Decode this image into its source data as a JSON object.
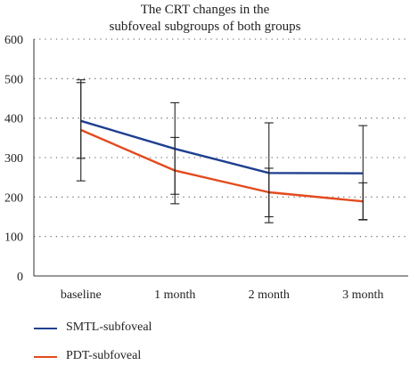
{
  "chart_data": {
    "type": "line",
    "title_lines": [
      "The CRT changes in the",
      "subfoveal subgroups of both groups"
    ],
    "xlabel": "",
    "ylabel": "",
    "categories": [
      "baseline",
      "1 month",
      "2 month",
      "3 month"
    ],
    "ylim": [
      0,
      600
    ],
    "yticks": [
      0,
      100,
      200,
      300,
      400,
      500,
      600
    ],
    "grid": "horizontal-dotted",
    "legend_position": "bottom-left",
    "series": [
      {
        "name": "SMTL-subfoveal",
        "color": "#1f3f8f",
        "values": [
          393,
          322,
          261,
          260
        ],
        "error_upper": [
          497,
          439,
          388,
          381
        ],
        "error_lower": [
          298,
          207,
          150,
          143
        ]
      },
      {
        "name": "PDT-subfoveal",
        "color": "#e34a1e",
        "values": [
          370,
          267,
          212,
          189
        ],
        "error_upper": [
          490,
          351,
          273,
          236
        ],
        "error_lower": [
          241,
          183,
          135,
          142
        ]
      }
    ]
  }
}
